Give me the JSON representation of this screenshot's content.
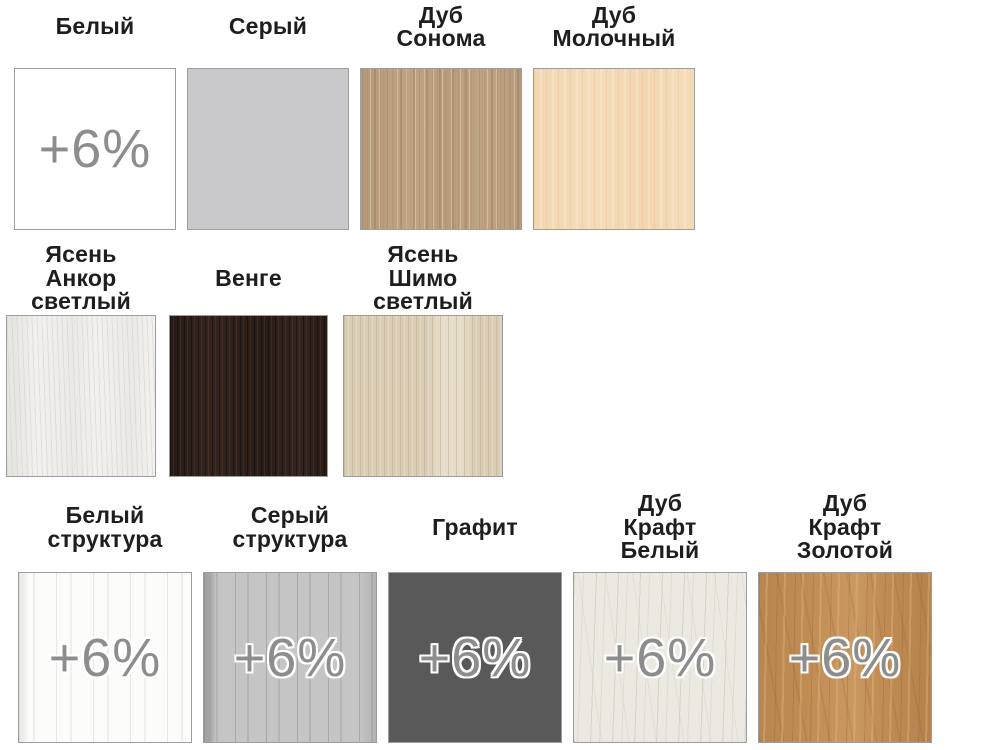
{
  "surcharge": {
    "label": "+6%",
    "color": "#8d8d8d"
  },
  "text_color": "#1e1e1e",
  "swatches": [
    {
      "label": "Белый",
      "base_color": "#ffffff",
      "surcharge": true,
      "outlined": false
    },
    {
      "label": "Серый",
      "base_color": "#c9c9cb",
      "surcharge": false,
      "outlined": false
    },
    {
      "label": "Дуб\nСонома",
      "base_color": "#bfa484",
      "surcharge": false,
      "outlined": false
    },
    {
      "label": "Дуб\nМолочный",
      "base_color": "#f4dcba",
      "surcharge": false,
      "outlined": false
    },
    {
      "label": "Ясень\nАнкор\nсветлый",
      "base_color": "#f2f1ee",
      "surcharge": false,
      "outlined": false
    },
    {
      "label": "Венге",
      "base_color": "#33241e",
      "surcharge": false,
      "outlined": false
    },
    {
      "label": "Ясень\nШимо\nсветлый",
      "base_color": "#d9cdb6",
      "surcharge": false,
      "outlined": false
    },
    {
      "label": "Белый\nструктура",
      "base_color": "#fcfcfb",
      "surcharge": true,
      "outlined": true
    },
    {
      "label": "Серый\nструктура",
      "base_color": "#c5c5c5",
      "surcharge": true,
      "outlined": true
    },
    {
      "label": "Графит",
      "base_color": "#595959",
      "surcharge": true,
      "outlined": true
    },
    {
      "label": "Дуб\nКрафт\nБелый",
      "base_color": "#ebe9e1",
      "surcharge": true,
      "outlined": true
    },
    {
      "label": "Дуб\nКрафт\nЗолотой",
      "base_color": "#c18d55",
      "surcharge": true,
      "outlined": true
    }
  ]
}
